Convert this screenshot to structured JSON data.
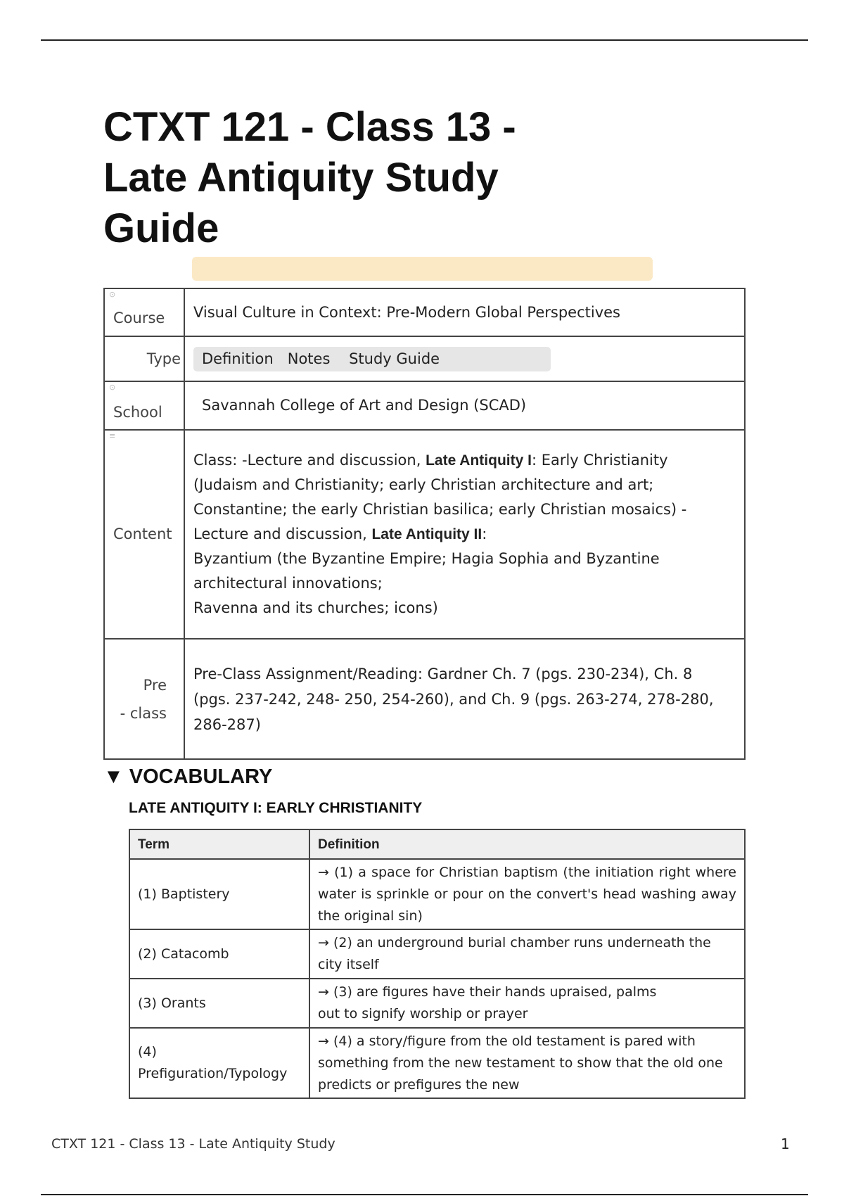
{
  "title": "CTXT 121 - Class 13 - Late Antiquity Study Guide",
  "properties": {
    "course": {
      "label": "Course",
      "value": "Visual Culture in Context: Pre-Modern Global Perspectives"
    },
    "type": {
      "label": "Type",
      "tags": [
        "Definition",
        "Notes",
        "Study Guide"
      ]
    },
    "school": {
      "label": "School",
      "value": "Savannah College of Art and Design (SCAD)"
    },
    "content": {
      "label": "Content",
      "p1": "Class: -Lecture and discussion, ",
      "b1": "Late Antiquity I",
      "p2": ": Early Christianity (Judaism and Christianity; early Christian architecture and art;",
      "p3": "Constantine; the early Christian basilica; early Christian mosaics) - Lecture and discussion, ",
      "b2": "Late Antiquity II",
      "p4": ":",
      "p5": "Byzantium (the Byzantine Empire; Hagia Sophia and Byzantine architectural innovations;",
      "p6": "Ravenna and its churches; icons)"
    },
    "preclass": {
      "label1": "Pre",
      "label2": "- class",
      "l1": "Pre-Class Assignment/Reading: Gardner Ch. 7 (pgs. 230-234), Ch. 8",
      "l2": "(pgs. 237-242, 248- 250, 254-260), and Ch. 9 (pgs. 263-274, 278-280,",
      "l3": "286-287)"
    }
  },
  "vocabulary": {
    "heading": "▼ VOCABULARY",
    "subheading": "LATE ANTIQUITY I: EARLY CHRISTIANITY",
    "columns": [
      "Term",
      "Definition"
    ],
    "rows": [
      {
        "term": "(1) Baptistery",
        "def": "→ (1) a space for Christian baptism (the initiation right where water is sprinkle or pour on the convert's head washing away the original sin)"
      },
      {
        "term": "(2) Catacomb",
        "def": "→ (2) an underground burial chamber runs underneath the city itself"
      },
      {
        "term": "(3) Orants",
        "def": "→ (3) are figures have their hands upraised, palms out to signify worship or prayer"
      },
      {
        "term": "(4) Prefiguration/Typology",
        "def": "→ (4) a story/figure from the old testament is pared with something from the new testament to show that the old one predicts or prefigures the new"
      }
    ]
  },
  "footer": {
    "text": "CTXT 121 - Class 13 - Late Antiquity Study",
    "page": "1"
  }
}
